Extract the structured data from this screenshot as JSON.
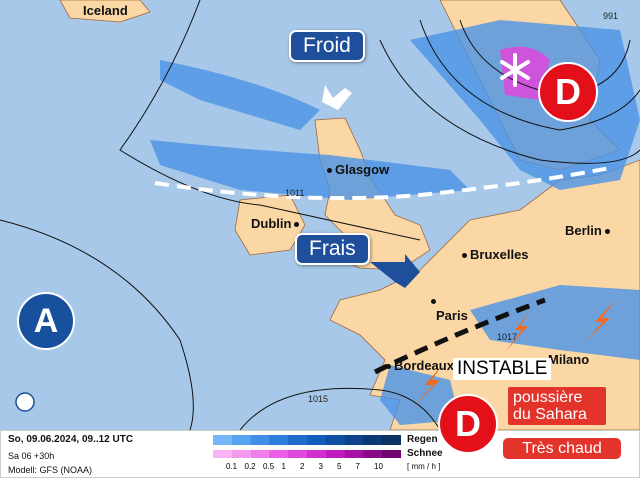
{
  "map": {
    "cities": [
      "Iceland",
      "Glasgow",
      "Dublin",
      "Berlin",
      "Bruxelles",
      "Paris",
      "Bordeaux",
      "Milano"
    ],
    "isobars": [
      "991",
      "1011",
      "1015",
      "1017"
    ],
    "labels": {
      "froid": "Froid",
      "frais": "Frais",
      "instable": "INSTABLE",
      "sahara": "poussière du Sahara",
      "chaud": "Très chaud"
    },
    "pressure_centers": {
      "low": "D",
      "high": "A"
    },
    "colors": {
      "ocean": "#a7c8e8",
      "land": "#fbd7a5",
      "low": "#e3101a",
      "high": "#17519e",
      "label_bg": "#1f4f9a"
    }
  },
  "footer": {
    "date": "So, 09.06.2024, 09..12 UTC",
    "run": "Sa 06 +30h",
    "model": "Modell: GFS (NOAA)",
    "rain_label": "Regen",
    "snow_label": "Schnee",
    "unit": "[ mm / h ]",
    "ticks": [
      "0.1",
      "0.2",
      "0.5",
      "1",
      "2",
      "3",
      "5",
      "7",
      "10"
    ],
    "rain_colors": [
      "#74b6f5",
      "#58a3f0",
      "#3f8fe8",
      "#2d7ddd",
      "#1d6bcd",
      "#145cb9",
      "#0f4ea2",
      "#0c438c",
      "#0b3978",
      "#0d3160"
    ],
    "snow_colors": [
      "#f8b4f2",
      "#f59bef",
      "#f07fea",
      "#ea5fe4",
      "#e047dc",
      "#d32ed0",
      "#c01bbd",
      "#a611a6",
      "#8a0a8c",
      "#6e0672"
    ]
  }
}
